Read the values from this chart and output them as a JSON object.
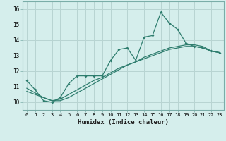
{
  "xlabel": "Humidex (Indice chaleur)",
  "bg_color": "#d5eeec",
  "grid_color": "#b8d4d2",
  "line_color": "#2e7d6e",
  "xlim": [
    -0.5,
    23.5
  ],
  "ylim": [
    9.5,
    16.5
  ],
  "xticks": [
    0,
    1,
    2,
    3,
    4,
    5,
    6,
    7,
    8,
    9,
    10,
    11,
    12,
    13,
    14,
    15,
    16,
    17,
    18,
    19,
    20,
    21,
    22,
    23
  ],
  "yticks": [
    10,
    11,
    12,
    13,
    14,
    15,
    16
  ],
  "x_hours": [
    0,
    1,
    2,
    3,
    4,
    5,
    6,
    7,
    8,
    9,
    10,
    11,
    12,
    13,
    14,
    15,
    16,
    17,
    18,
    19,
    20,
    21,
    22,
    23
  ],
  "line1_y": [
    11.4,
    10.8,
    10.1,
    10.0,
    10.3,
    11.2,
    11.7,
    11.7,
    11.7,
    11.7,
    12.7,
    13.4,
    13.5,
    12.7,
    14.2,
    14.3,
    15.8,
    15.1,
    14.7,
    13.8,
    13.6,
    13.5,
    13.3,
    13.2
  ],
  "line2_y": [
    10.9,
    10.6,
    10.3,
    10.1,
    10.2,
    10.5,
    10.8,
    11.1,
    11.4,
    11.6,
    11.9,
    12.2,
    12.4,
    12.6,
    12.8,
    13.0,
    13.2,
    13.4,
    13.5,
    13.6,
    13.6,
    13.5,
    13.3,
    13.2
  ],
  "line3_y": [
    10.7,
    10.5,
    10.3,
    10.1,
    10.1,
    10.3,
    10.6,
    10.9,
    11.2,
    11.5,
    11.8,
    12.1,
    12.4,
    12.6,
    12.9,
    13.1,
    13.3,
    13.5,
    13.6,
    13.7,
    13.7,
    13.6,
    13.3,
    13.2
  ]
}
